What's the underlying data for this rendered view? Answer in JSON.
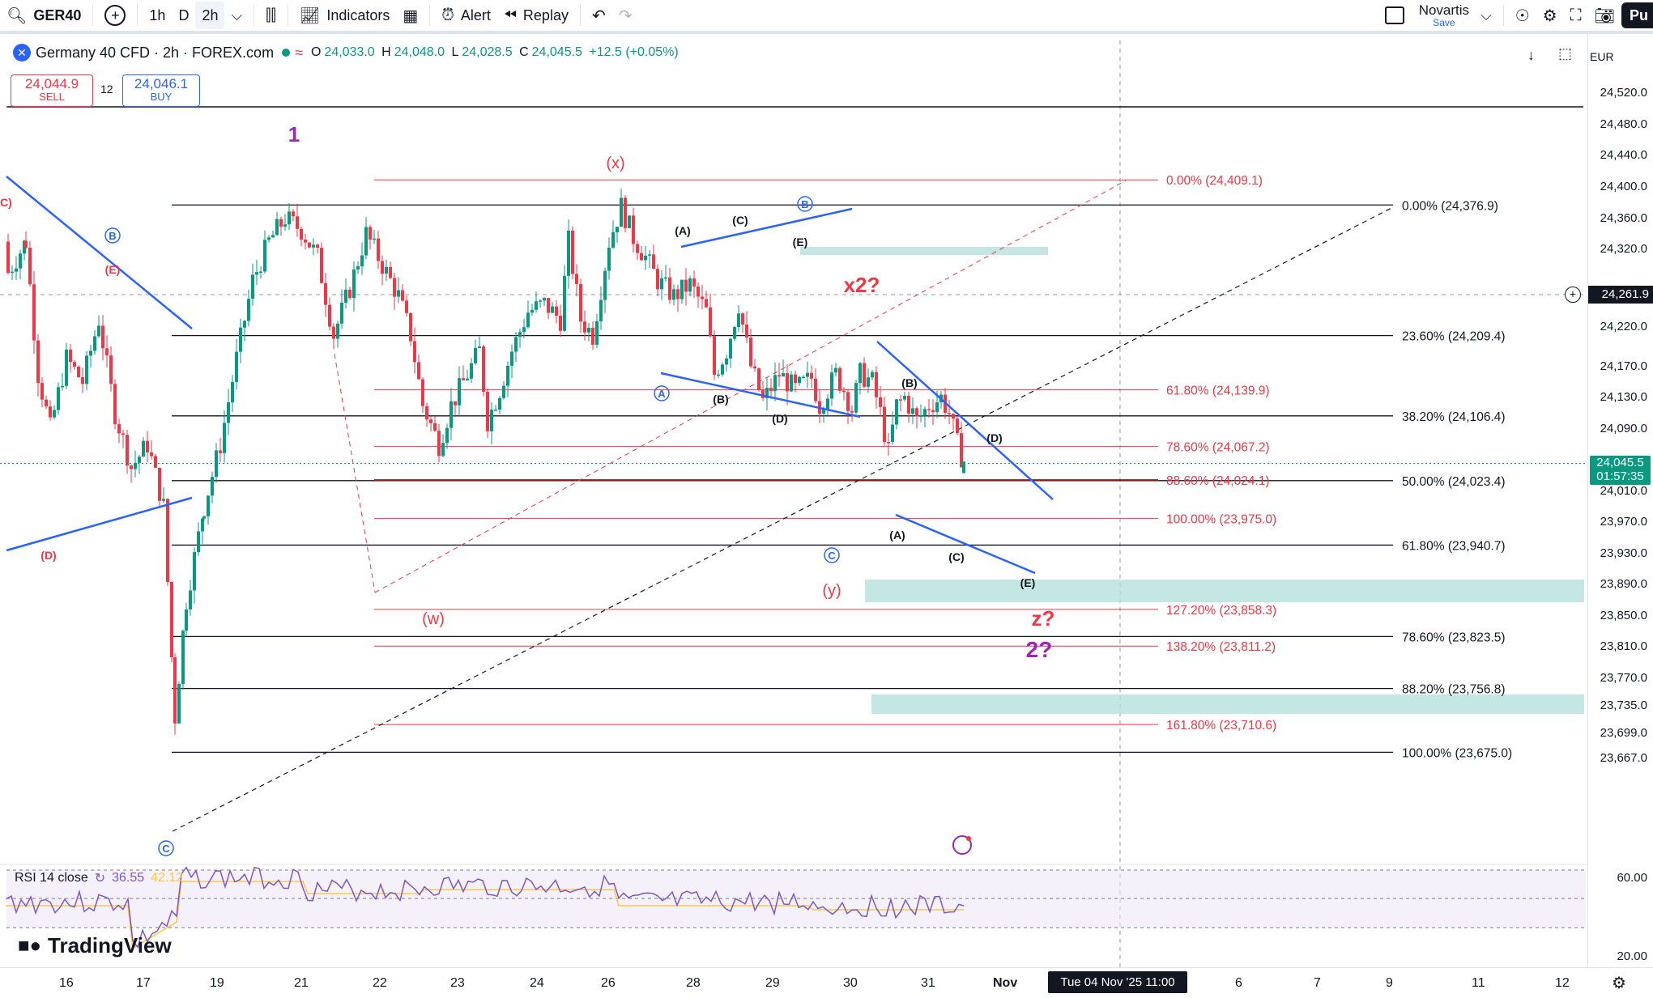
{
  "toolbar": {
    "symbol": "GER40",
    "intervals": [
      "1h",
      "D",
      "2h"
    ],
    "indicators_label": "Indicators",
    "alert_label": "Alert",
    "replay_label": "Replay",
    "layout_name": "Novartis",
    "save_label": "Save",
    "publish_label": "Pu"
  },
  "legend": {
    "title": "Germany 40 CFD · 2h · FOREX.com",
    "open_label": "O",
    "open": "24,033.0",
    "high_label": "H",
    "high": "24,048.0",
    "low_label": "L",
    "low": "24,028.5",
    "close_label": "C",
    "close": "24,045.5",
    "change": "+12.5 (+0.05%)",
    "sell_price": "24,044.9",
    "sell_label": "SELL",
    "spread": "12",
    "buy_price": "24,046.1",
    "buy_label": "BUY"
  },
  "price_axis": {
    "currency": "EUR",
    "labels": [
      "24,520.0",
      "24,480.0",
      "24,440.0",
      "24,400.0",
      "24,360.0",
      "24,320.0",
      "24,220.0",
      "24,170.0",
      "24,130.0",
      "24,090.0",
      "24,010.0",
      "23,970.0",
      "23,930.0",
      "23,890.0",
      "23,850.0",
      "23,810.0",
      "23,770.0",
      "23,735.0",
      "23,699.0",
      "23,667.0"
    ],
    "crosshair_price": "24,261.9",
    "last_price": "24,045.5",
    "countdown": "01:57:35",
    "rsi_labels": [
      "60.00",
      "20.00"
    ]
  },
  "time_axis": {
    "labels": [
      "16",
      "17",
      "19",
      "21",
      "22",
      "23",
      "24",
      "26",
      "28",
      "29",
      "30",
      "31",
      "Nov",
      "6",
      "7",
      "9",
      "11",
      "12"
    ],
    "crosshair_time": "Tue 04 Nov '25   11:00"
  },
  "fib_black": [
    {
      "label": "0.00% (24,376.9)",
      "price": 24376.9
    },
    {
      "label": "23.60% (24,209.4)",
      "price": 24209.4
    },
    {
      "label": "38.20% (24,106.4)",
      "price": 24106.4
    },
    {
      "label": "50.00% (24,023.4)",
      "price": 24023.4
    },
    {
      "label": "61.80% (23,940.7)",
      "price": 23940.7
    },
    {
      "label": "78.60% (23,823.5)",
      "price": 23823.5
    },
    {
      "label": "88.20% (23,756.8)",
      "price": 23756.8
    },
    {
      "label": "100.00% (23,675.0)",
      "price": 23675.0
    }
  ],
  "fib_red": [
    {
      "label": "0.00% (24,409.1)",
      "price": 24409.1
    },
    {
      "label": "61.80% (24,139.9)",
      "price": 24139.9
    },
    {
      "label": "78.60% (24,067.2)",
      "price": 24067.2
    },
    {
      "label": "88.60% (24,024.1)",
      "price": 24024.1
    },
    {
      "label": "100.00% (23,975.0)",
      "price": 23975.0
    },
    {
      "label": "127.20% (23,858.3)",
      "price": 23858.3
    },
    {
      "label": "138.20% (23,811.2)",
      "price": 23811.2
    },
    {
      "label": "161.80% (23,710.6)",
      "price": 23710.6
    }
  ],
  "wave_labels": {
    "w1": "1",
    "x_paren": "(x)",
    "w_paren": "(w)",
    "y_paren": "(y)",
    "x2": "x2?",
    "z": "z?",
    "w2": "2?",
    "A": "(A)",
    "B": "(B)",
    "C": "(C)",
    "D": "(D)",
    "E": "(E)",
    "circ_A": "A",
    "circ_B": "B",
    "circ_C": "C",
    "C_trunc": "C)"
  },
  "rsi": {
    "label": "RSI 14 close",
    "value1": "36.55",
    "value2": "42.12",
    "colors": {
      "rsi": "#7e57c2",
      "ma": "#f7c948"
    }
  },
  "branding": "TradingView",
  "colors": {
    "up": "#089981",
    "down": "#f23645",
    "fib_red": "#f23645",
    "trend": "#2962ff",
    "zone": "#b2dfdb",
    "wave_purple": "#9c27b0"
  }
}
